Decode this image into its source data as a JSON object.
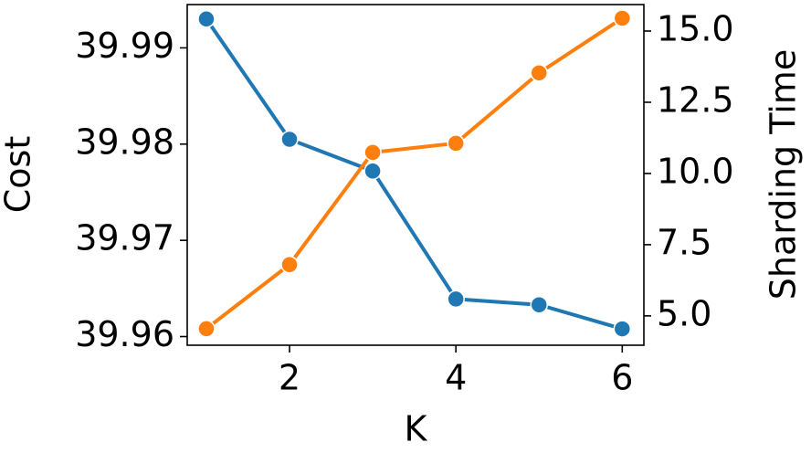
{
  "chart_data": {
    "type": "line",
    "x_label": "K",
    "y_label": "Cost",
    "y2_label": "Sharding Time",
    "x": [
      1,
      2,
      3,
      4,
      5,
      6
    ],
    "series": [
      {
        "color": "#1f77b4",
        "values": [
          39.993,
          39.9805,
          39.9772,
          39.9639,
          39.9633,
          39.9608
        ]
      },
      {
        "color": "#ff7f0e",
        "axis": "y2",
        "values": [
          4.55,
          6.8,
          10.74,
          11.06,
          13.53,
          15.45
        ]
      }
    ],
    "xlim": [
      0.77,
      6.26
    ],
    "xticks": [
      2,
      4,
      6
    ],
    "ylim": [
      39.9591,
      39.9945
    ],
    "yticks": [
      39.96,
      39.97,
      39.98,
      39.99
    ],
    "y2lim": [
      3.97,
      15.93
    ],
    "y2ticks": [
      {
        "value": 5,
        "label": "5.0"
      },
      7.5,
      {
        "value": 10,
        "label": "10.0"
      },
      12.5,
      {
        "value": 15,
        "label": "15.0"
      }
    ],
    "grid": false
  }
}
